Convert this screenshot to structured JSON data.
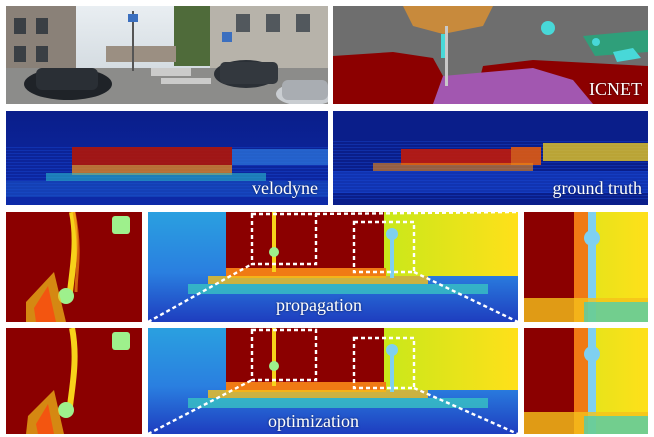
{
  "labels": {
    "segmentation": "ICNET",
    "lidar": "velodyne",
    "groundtruth": "ground truth",
    "propagation": "propagation",
    "optimization": "optimization"
  },
  "colors": {
    "seg_sky": "#6e6e6e",
    "seg_building": "#8c0000",
    "seg_road": "#a257b0",
    "seg_tree": "#c88a3c",
    "seg_cyan": "#48d8d8",
    "depth_far": "#8b0000",
    "depth_mid": "#ffe01a",
    "depth_near": "#1e3dbf",
    "lidar_bg": "#0a1e8a"
  }
}
